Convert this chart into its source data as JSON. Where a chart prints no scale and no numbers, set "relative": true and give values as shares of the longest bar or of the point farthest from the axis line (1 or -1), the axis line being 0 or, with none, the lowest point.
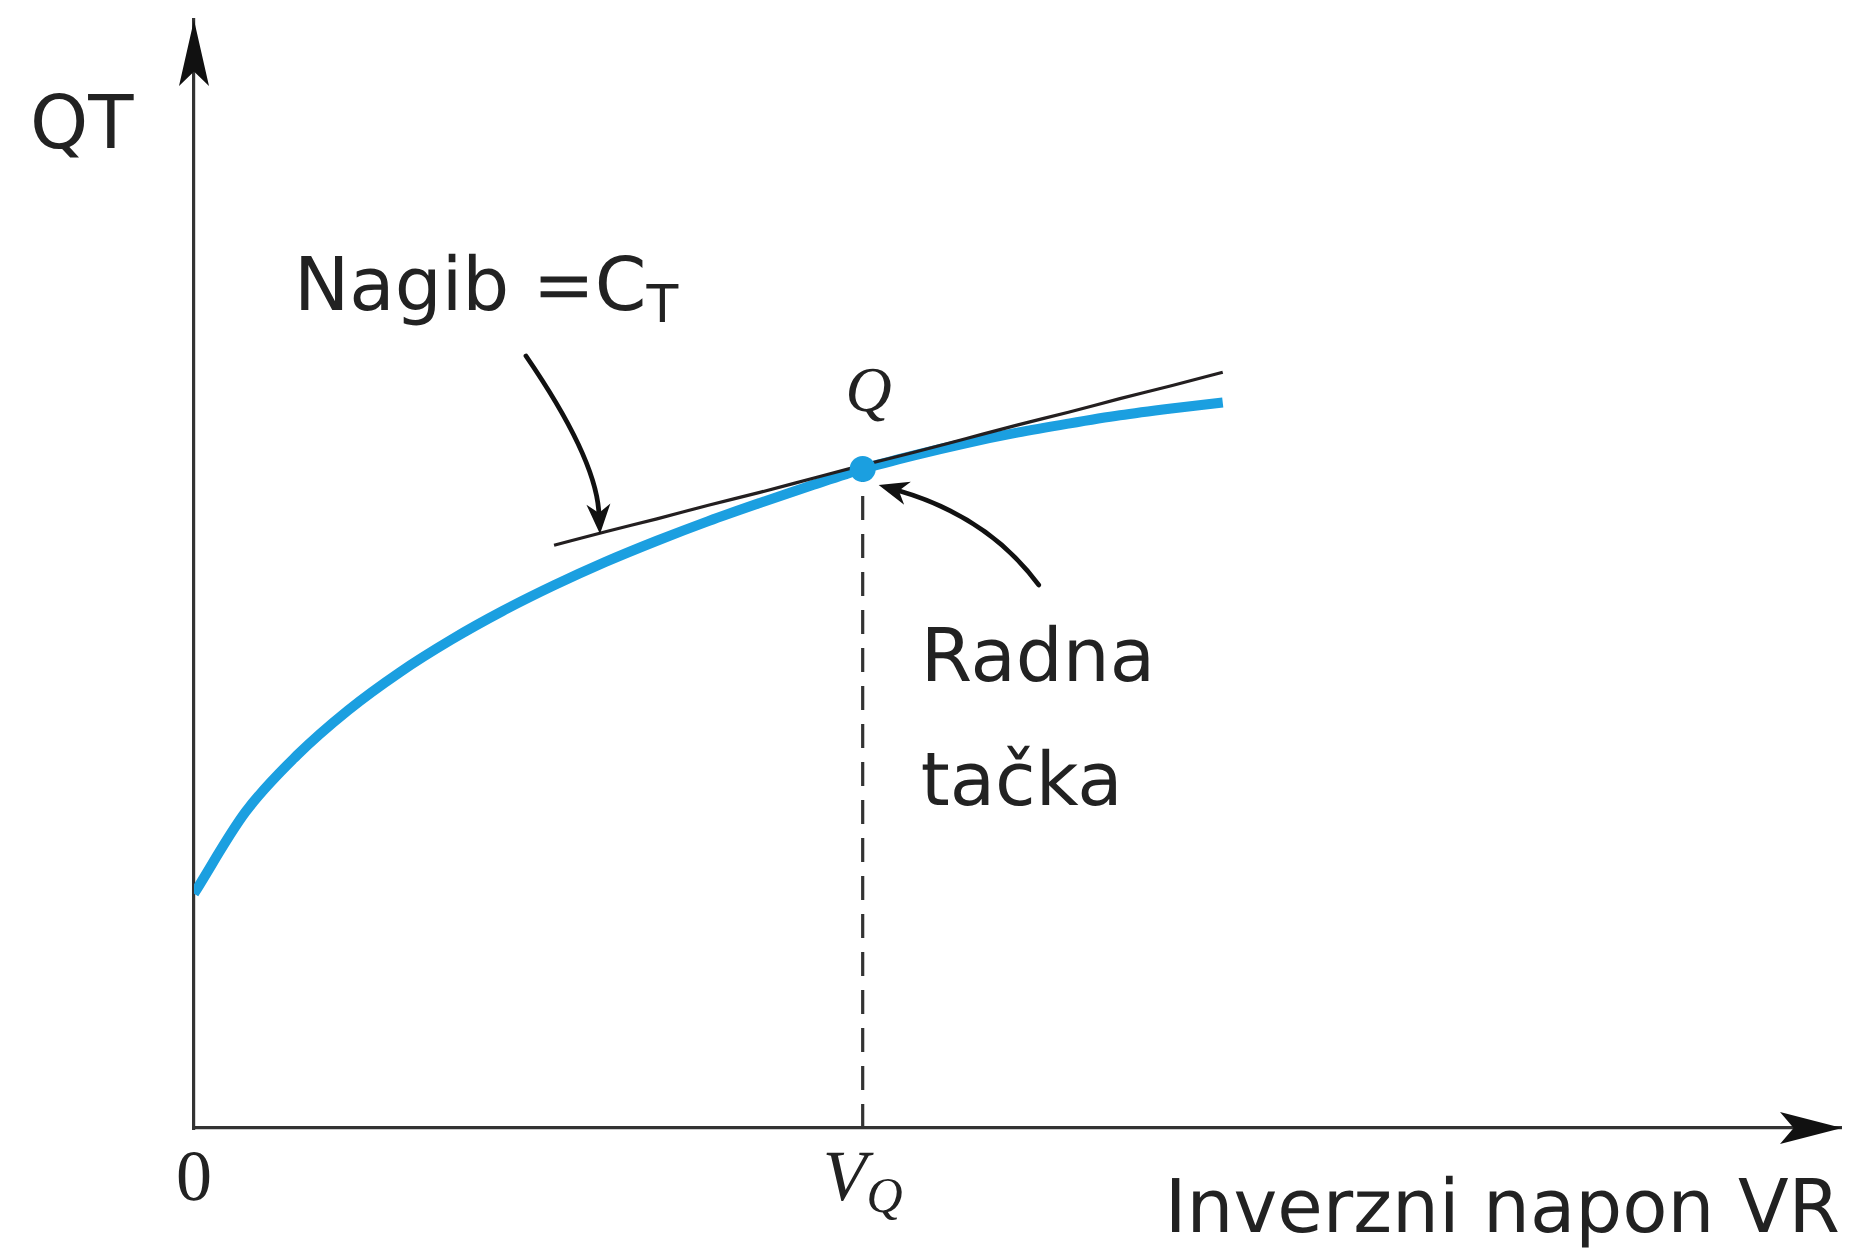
{
  "chart_data": {
    "type": "line",
    "relative": true,
    "xlabel": "Inverzni napon VR",
    "ylabel": "QT",
    "categories": [
      "0",
      null,
      null,
      null,
      null,
      null,
      null,
      null,
      null,
      null,
      null,
      null,
      null,
      "V$_{Q}$",
      null,
      null,
      null,
      null,
      null,
      null,
      null,
      null,
      null,
      null,
      null,
      null,
      null,
      null,
      null,
      null,
      null,
      null,
      null
    ],
    "annotations": [
      "Nagib =C$_{T}$",
      {
        "text": "Q",
        "x": "V$_{Q}$",
        "y": 0.872
      },
      {
        "text": "Radna tačka",
        "x": "V$_{Q}$",
        "y": 0.872
      }
    ],
    "series": [
      {
        "color": "#1b9fe0",
        "values": [
          0.31,
          0.418,
          0.493,
          0.553,
          0.603,
          0.646,
          0.684,
          0.718,
          0.749,
          0.777,
          0.803,
          0.827,
          0.85,
          0.872,
          0.89,
          0.906,
          0.92,
          0.932,
          0.943,
          0.952,
          0.96,
          null,
          null,
          null,
          null,
          null,
          null,
          null,
          null,
          null,
          null,
          null,
          null
        ]
      },
      {
        "color": "#231f20",
        "values": [
          null,
          null,
          null,
          null,
          null,
          null,
          null,
          0.771,
          0.789,
          0.806,
          0.824,
          0.841,
          0.859,
          0.877,
          0.894,
          0.912,
          0.93,
          0.947,
          0.965,
          0.982,
          1,
          null,
          null,
          null,
          null,
          null,
          null,
          null,
          null,
          null,
          null,
          null,
          null
        ]
      },
      {
        "type": "lollipop",
        "marker": "circle",
        "line_style": "dashed",
        "color": "#1b9fe0",
        "values": [
          null,
          null,
          null,
          null,
          null,
          null,
          null,
          null,
          null,
          null,
          null,
          null,
          null,
          0.872,
          null,
          null,
          null,
          null,
          null,
          null,
          null,
          null,
          null,
          null,
          null,
          null,
          null,
          null,
          null,
          null,
          null,
          null,
          null
        ]
      }
    ]
  }
}
